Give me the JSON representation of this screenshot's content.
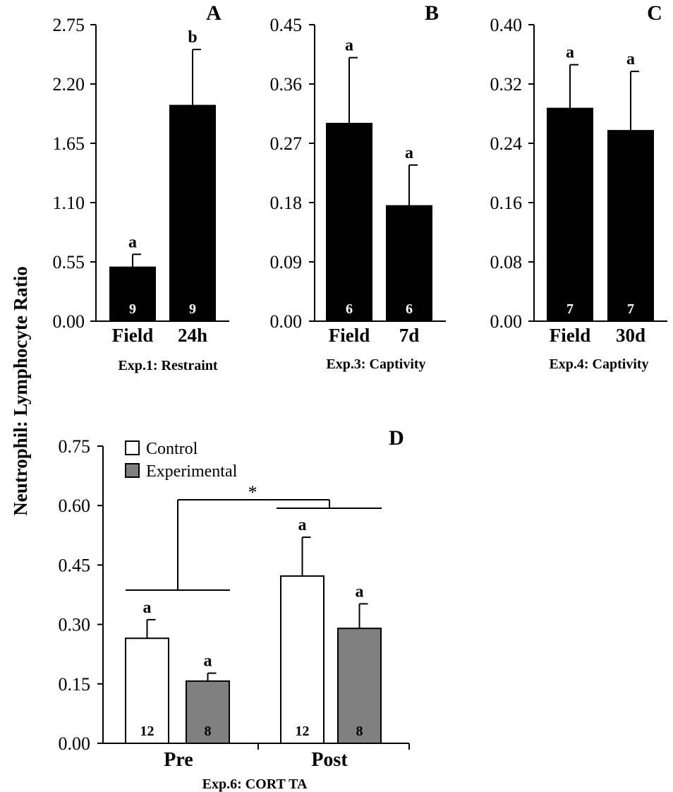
{
  "y_axis_title": "Neutrophil: Lymphocyte Ratio",
  "colors": {
    "black_bar": "#000000",
    "control": "#ffffff",
    "experimental": "#808080"
  },
  "chart_data": [
    {
      "type": "bar",
      "panel_letter": "A",
      "xlabel": "Exp.1: Restraint",
      "ylabel": "Neutrophil: Lymphocyte Ratio",
      "categories": [
        "Field",
        "24h"
      ],
      "values": [
        0.5,
        2.0
      ],
      "error_upper": [
        0.62,
        2.52
      ],
      "letters": [
        "a",
        "b"
      ],
      "n": [
        "9",
        "9"
      ],
      "ylim": [
        0,
        2.75
      ],
      "yticks": [
        "0.00",
        "0.55",
        "1.10",
        "1.65",
        "2.20",
        "2.75"
      ]
    },
    {
      "type": "bar",
      "panel_letter": "B",
      "xlabel": "Exp.3: Captivity",
      "ylabel": "Neutrophil: Lymphocyte Ratio",
      "categories": [
        "Field",
        "7d"
      ],
      "values": [
        0.3,
        0.175
      ],
      "error_upper": [
        0.4,
        0.237
      ],
      "letters": [
        "a",
        "a"
      ],
      "n": [
        "6",
        "6"
      ],
      "ylim": [
        0,
        0.45
      ],
      "yticks": [
        "0.00",
        "0.09",
        "0.18",
        "0.27",
        "0.36",
        "0.45"
      ]
    },
    {
      "type": "bar",
      "panel_letter": "C",
      "xlabel": "Exp.4: Captivity",
      "ylabel": "Neutrophil: Lymphocyte Ratio",
      "categories": [
        "Field",
        "30d"
      ],
      "values": [
        0.287,
        0.257
      ],
      "error_upper": [
        0.346,
        0.337
      ],
      "letters": [
        "a",
        "a"
      ],
      "n": [
        "7",
        "7"
      ],
      "ylim": [
        0,
        0.4
      ],
      "yticks": [
        "0.00",
        "0.08",
        "0.16",
        "0.24",
        "0.32",
        "0.40"
      ]
    },
    {
      "type": "bar",
      "panel_letter": "D",
      "xlabel": "Exp.6: CORT TA",
      "ylabel": "Neutrophil: Lymphocyte Ratio",
      "categories": [
        "Pre",
        "Post"
      ],
      "series": [
        {
          "name": "Control",
          "values": [
            0.265,
            0.422
          ],
          "error_upper": [
            0.312,
            0.52
          ],
          "letters": [
            "a",
            "a"
          ],
          "n": [
            "12",
            "12"
          ]
        },
        {
          "name": "Experimental",
          "values": [
            0.157,
            0.29
          ],
          "error_upper": [
            0.177,
            0.352
          ],
          "letters": [
            "a",
            "a"
          ],
          "n": [
            "8",
            "8"
          ]
        }
      ],
      "significance": "*",
      "legend": "top-left",
      "ylim": [
        0,
        0.75
      ],
      "yticks": [
        "0.00",
        "0.15",
        "0.30",
        "0.45",
        "0.60",
        "0.75"
      ]
    }
  ]
}
